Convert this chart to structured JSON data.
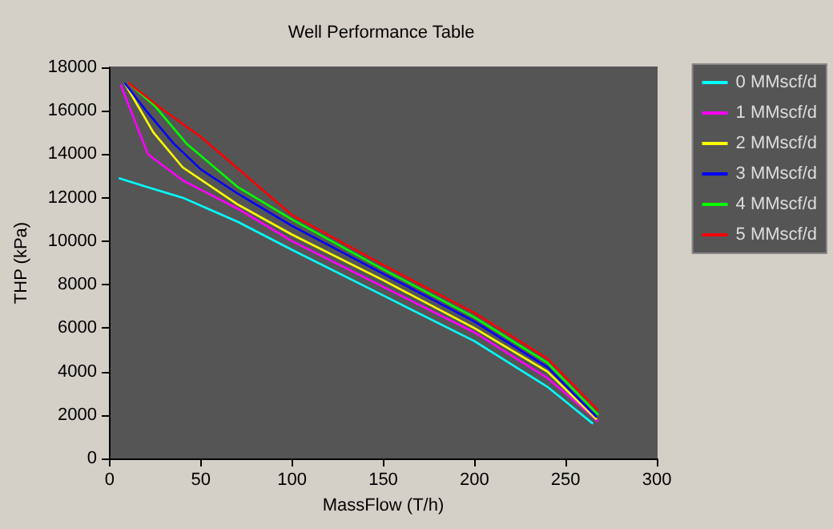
{
  "chart_data": {
    "type": "line",
    "title": "Well Performance Table",
    "xlabel": "MassFlow (T/h)",
    "ylabel": "THP (kPa)",
    "xlim": [
      0,
      300
    ],
    "xticks": [
      0,
      50,
      100,
      150,
      200,
      250,
      300
    ],
    "ylim": [
      0,
      18000
    ],
    "yticks": [
      0,
      2000,
      4000,
      6000,
      8000,
      10000,
      12000,
      14000,
      16000,
      18000
    ],
    "grid": false,
    "legend": "right",
    "marker": "none",
    "line_style": "solid",
    "series": [
      {
        "name": "0 MMscf/d",
        "color": "#00ffff",
        "x": [
          5,
          20,
          40,
          70,
          100,
          150,
          200,
          240,
          265
        ],
        "values": [
          12900,
          12500,
          12000,
          10900,
          9600,
          7500,
          5400,
          3300,
          1600
        ]
      },
      {
        "name": "1 MMscf/d",
        "color": "#ff00ff",
        "x": [
          6,
          21,
          40,
          70,
          100,
          150,
          200,
          240,
          250,
          268
        ],
        "values": [
          17200,
          14000,
          12800,
          11500,
          10000,
          7900,
          5800,
          3700,
          3000,
          1700
        ]
      },
      {
        "name": "2 MMscf/d",
        "color": "#ffff00",
        "x": [
          8,
          24,
          40,
          70,
          100,
          150,
          200,
          240,
          267
        ],
        "values": [
          17300,
          15000,
          13400,
          11700,
          10300,
          8200,
          6000,
          4000,
          1800
        ]
      },
      {
        "name": "3 MMscf/d",
        "color": "#0000ff",
        "x": [
          8,
          20,
          35,
          50,
          70,
          100,
          150,
          200,
          240,
          267
        ],
        "values": [
          17300,
          16000,
          14500,
          13300,
          12200,
          10700,
          8500,
          6300,
          4200,
          1900
        ]
      },
      {
        "name": "4 MMscf/d",
        "color": "#00ff00",
        "x": [
          10,
          25,
          42,
          70,
          100,
          150,
          200,
          240,
          268
        ],
        "values": [
          17300,
          16200,
          14500,
          12500,
          11000,
          8700,
          6500,
          4400,
          2000
        ]
      },
      {
        "name": "5 MMscf/d",
        "color": "#ff0000",
        "x": [
          10,
          30,
          50,
          100,
          150,
          200,
          240,
          268
        ],
        "values": [
          17300,
          16000,
          14800,
          11200,
          8900,
          6700,
          4600,
          2200
        ]
      }
    ]
  }
}
